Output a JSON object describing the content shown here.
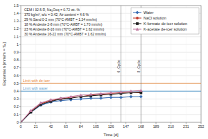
{
  "chart_data": {
    "type": "line",
    "x_label": "Time [d]",
    "y_label": "Expansion [mm/m = ‰]",
    "notes": [
      "CEM I 32.5 R, Na₂Oeq = 0.72 wt.-%",
      "370 kg/m³, w/c = 0.42, Air content = 4.6 %",
      "29 % Sand 0-2 mm (70°C-AMBT = 1.34 mm/m)",
      "18 % Andesite 2-8 mm (70°C-AMBT = 1.70 mm/m)",
      "23 % Andesite 8-16 mm (70°C-AMBT = 1.62 mm/m)",
      "30 % Andesite 16-22 mm (70°C-AMBT = 1.62 mm/m)"
    ],
    "x": [
      0,
      14,
      28,
      42,
      56,
      70,
      84,
      98,
      112,
      126,
      140,
      154,
      168
    ],
    "series": [
      {
        "name": "Water",
        "color": "#3b6fb4",
        "marker": "diamond",
        "values": [
          0,
          0.13,
          0.22,
          0.26,
          0.28,
          0.29,
          0.3,
          0.31,
          0.31,
          0.32,
          0.32,
          0.33,
          0.33
        ]
      },
      {
        "name": "NaCl solution",
        "color": "#c0392b",
        "marker": "circle",
        "values": [
          0,
          0.14,
          0.24,
          0.28,
          0.3,
          0.32,
          0.33,
          0.35,
          0.36,
          0.37,
          0.38,
          0.38,
          0.39
        ]
      },
      {
        "name": "K-formate de-icer solution",
        "color": "#222222",
        "marker": "square",
        "values": [
          0,
          0.13,
          0.23,
          0.27,
          0.3,
          0.31,
          0.33,
          0.34,
          0.35,
          0.36,
          0.37,
          0.38,
          0.38
        ]
      },
      {
        "name": "K-acetate de-icer solution",
        "color": "#c07aa0",
        "marker": "triangle",
        "values": [
          0,
          0.15,
          0.25,
          0.29,
          0.31,
          0.33,
          0.35,
          0.36,
          0.37,
          0.38,
          0.39,
          0.4,
          0.41
        ]
      }
    ],
    "reference_lines": [
      {
        "label": "Limit with de-icer",
        "value": 0.5,
        "color": "#e8883a"
      },
      {
        "label": "Limit with water",
        "value": 0.4,
        "color": "#5fa0d0"
      }
    ],
    "vertical_lines": [
      {
        "label": "6. Cycle",
        "value": 140
      },
      {
        "label": "8. Cycle",
        "value": 168
      }
    ],
    "xlim": [
      0,
      252
    ],
    "xticks": [
      0,
      21,
      42,
      63,
      84,
      105,
      126,
      147,
      168,
      189,
      210,
      231,
      252
    ],
    "ylim": [
      0,
      1.5
    ],
    "yticks": [
      0,
      0.1,
      0.2,
      0.3,
      0.4,
      0.5,
      0.6,
      0.7,
      0.8,
      0.9,
      1,
      1.1,
      1.2,
      1.3,
      1.4,
      1.5
    ],
    "grid": true,
    "legend": "upper-right"
  }
}
